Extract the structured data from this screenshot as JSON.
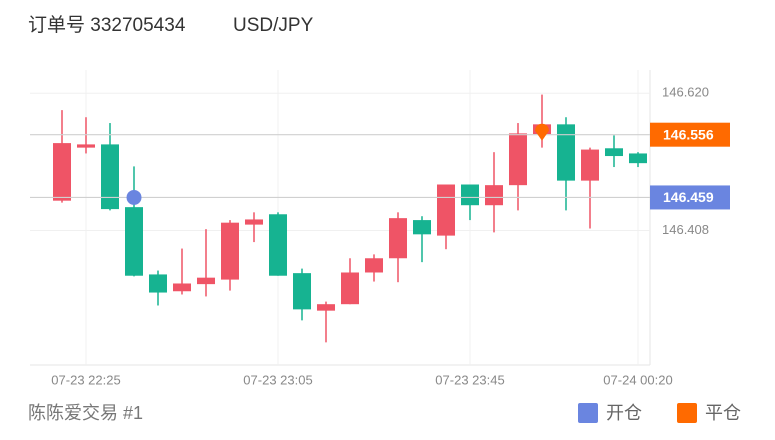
{
  "chart_data": {
    "type": "candlestick",
    "title": "订单号 332705434",
    "subtitle": "USD/JPY",
    "footer": "陈陈爱交易 #1",
    "categories": [
      null,
      "07-23 22:25",
      null,
      null,
      null,
      null,
      null,
      null,
      null,
      "07-23 23:05",
      null,
      null,
      null,
      null,
      null,
      null,
      null,
      "07-23 23:45",
      null,
      null,
      null,
      null,
      null,
      null,
      "07-24 00:20"
    ],
    "open": [
      146.454,
      146.536,
      146.541,
      146.444,
      146.34,
      146.314,
      146.325,
      146.332,
      146.417,
      146.433,
      146.342,
      146.284,
      146.294,
      146.343,
      146.365,
      146.424,
      146.4,
      146.479,
      146.447,
      146.478,
      146.557,
      146.572,
      146.485,
      146.535,
      146.527
    ],
    "high": [
      146.594,
      146.583,
      146.574,
      146.507,
      146.346,
      146.38,
      146.41,
      146.424,
      146.436,
      146.436,
      146.349,
      146.298,
      146.365,
      146.371,
      146.436,
      146.43,
      146.479,
      146.479,
      146.529,
      146.574,
      146.618,
      146.583,
      146.536,
      146.555,
      146.529
    ],
    "low": [
      146.451,
      146.527,
      146.439,
      146.337,
      146.292,
      146.309,
      146.306,
      146.315,
      146.39,
      146.338,
      146.269,
      146.235,
      146.294,
      146.329,
      146.328,
      146.359,
      146.379,
      146.424,
      146.405,
      146.439,
      146.536,
      146.439,
      146.411,
      146.506,
      146.506
    ],
    "close": [
      146.543,
      146.541,
      146.441,
      146.338,
      146.312,
      146.326,
      146.335,
      146.42,
      146.425,
      146.338,
      146.286,
      146.294,
      146.343,
      146.365,
      146.427,
      146.402,
      146.479,
      146.447,
      146.478,
      146.558,
      146.572,
      146.485,
      146.533,
      146.523,
      146.512
    ],
    "up_color": "#ef5466",
    "down_color": "#16b391",
    "ylim": [
      146.2,
      146.656
    ],
    "yticks": [
      {
        "value": 146.62,
        "label": "146.620"
      },
      146.408
    ],
    "grid": true,
    "markers": [
      {
        "name": "开仓",
        "color": "#6a85e0",
        "index": 3,
        "price": 146.459
      },
      {
        "name": "平仓",
        "color": "#ff6a00",
        "index": 20,
        "price": 146.556
      }
    ]
  }
}
